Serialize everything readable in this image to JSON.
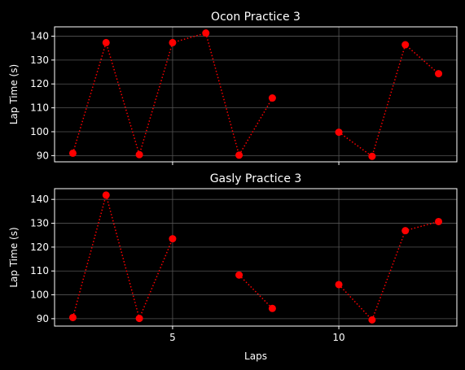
{
  "chart_data": [
    {
      "type": "line",
      "title": "Ocon Practice 3",
      "xlabel": "",
      "ylabel": "Lap Time (s)",
      "x": [
        2,
        3,
        4,
        5,
        6,
        7,
        8,
        9,
        10,
        11,
        12,
        13
      ],
      "series": [
        {
          "values": [
            91,
            137.3,
            90.4,
            137.3,
            141.3,
            90.2,
            114.1,
            null,
            99.8,
            89.7,
            136.4,
            124.3
          ]
        }
      ],
      "xlim": [
        1.45,
        13.55
      ],
      "ylim": [
        87.4,
        143.9
      ],
      "xticks": [
        5,
        10
      ],
      "xtick_labels_visible": false,
      "yticks": [
        90,
        100,
        110,
        120,
        130,
        140
      ],
      "grid": true,
      "line_style": "dotted",
      "marker": "circle"
    },
    {
      "type": "line",
      "title": "Gasly Practice 3",
      "xlabel": "Laps",
      "ylabel": "Lap Time (s)",
      "x": [
        2,
        3,
        4,
        5,
        6,
        7,
        8,
        9,
        10,
        11,
        12,
        13
      ],
      "series": [
        {
          "values": [
            90.5,
            141.8,
            90.1,
            123.5,
            null,
            108.3,
            94.3,
            null,
            104.3,
            89.5,
            126.9,
            130.7
          ]
        }
      ],
      "xlim": [
        1.45,
        13.55
      ],
      "ylim": [
        86.9,
        144.5
      ],
      "xticks": [
        5,
        10
      ],
      "xtick_labels_visible": true,
      "yticks": [
        90,
        100,
        110,
        120,
        130,
        140
      ],
      "grid": true,
      "line_style": "dotted",
      "marker": "circle"
    }
  ],
  "colors": {
    "background": "#000000",
    "series": "#ff0000",
    "axes": "#ffffff",
    "grid": "#555555"
  }
}
